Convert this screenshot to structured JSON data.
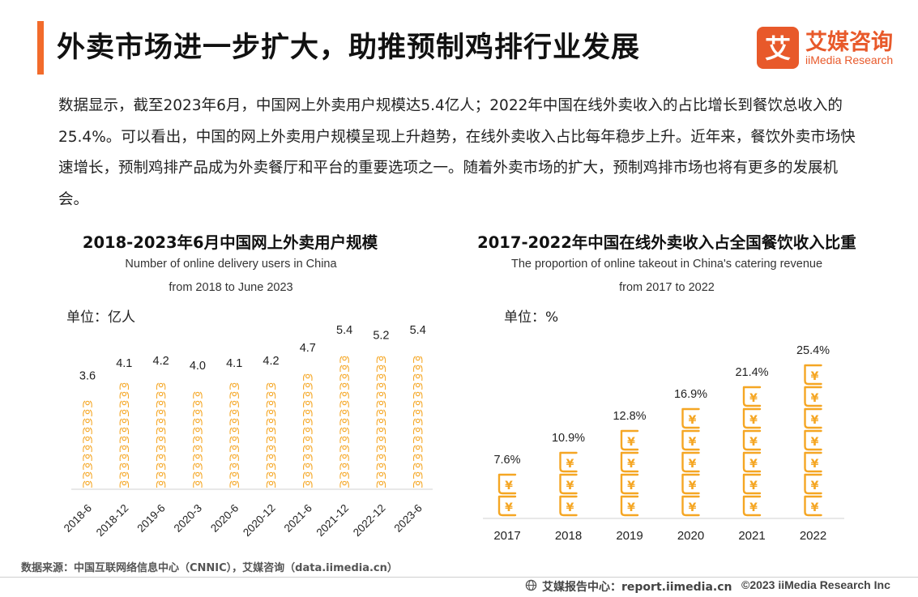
{
  "page": {
    "title": "外卖市场进一步扩大，助推预制鸡排行业发展",
    "intro": "数据显示，截至2023年6月，中国网上外卖用户规模达5.4亿人；2022年中国在线外卖收入的占比增长到餐饮总收入的25.4%。可以看出，中国的网上外卖用户规模呈现上升趋势，在线外卖收入占比每年稳步上升。近年来，餐饮外卖市场快速增长，预制鸡排产品成为外卖餐厅和平台的重要选项之一。随着外卖市场的扩大，预制鸡排市场也将有更多的发展机会。"
  },
  "logo": {
    "cn": "艾媒咨询",
    "en": "iiMedia Research",
    "mark_char": "艾",
    "color": "#e8592a"
  },
  "footer": {
    "source": "数据来源：中国互联网络信息中心（CNNIC），艾媒咨询（data.iimedia.cn）",
    "report_center": "艾媒报告中心：report.iimedia.cn",
    "copyright": "©2023  iiMedia Research  Inc"
  },
  "colors": {
    "accent": "#f26b2b",
    "icon": "#f5a623"
  },
  "chart_data": [
    {
      "type": "bar",
      "title": "2018-2023年6月中国网上外卖用户规模",
      "subtitle_line1": "Number of online delivery users in China",
      "subtitle_line2": "from 2018 to June 2023",
      "unit": "单位：亿人",
      "categories": [
        "2018-6",
        "2018-12",
        "2019-6",
        "2020-3",
        "2020-6",
        "2020-12",
        "2021-6",
        "2021-12",
        "2022-12",
        "2023-6"
      ],
      "values": [
        3.6,
        4.1,
        4.2,
        4.0,
        4.1,
        4.2,
        4.7,
        5.4,
        5.2,
        5.4
      ],
      "value_labels": [
        "3.6",
        "4.1",
        "4.2",
        "4.0",
        "4.1",
        "4.2",
        "4.7",
        "5.4",
        "5.2",
        "5.4"
      ],
      "xlabel": "",
      "ylabel": "",
      "grid": false
    },
    {
      "type": "bar",
      "title": "2017-2022年中国在线外卖收入占全国餐饮收入比重",
      "subtitle_line1": "The proportion of online takeout in China's catering revenue",
      "subtitle_line2": "from 2017 to 2022",
      "unit": "单位：%",
      "categories": [
        "2017",
        "2018",
        "2019",
        "2020",
        "2021",
        "2022"
      ],
      "values": [
        7.6,
        10.9,
        12.8,
        16.9,
        21.4,
        25.4
      ],
      "value_labels": [
        "7.6%",
        "10.9%",
        "12.8%",
        "16.9%",
        "21.4%",
        "25.4%"
      ],
      "xlabel": "",
      "ylabel": "",
      "grid": false
    }
  ]
}
